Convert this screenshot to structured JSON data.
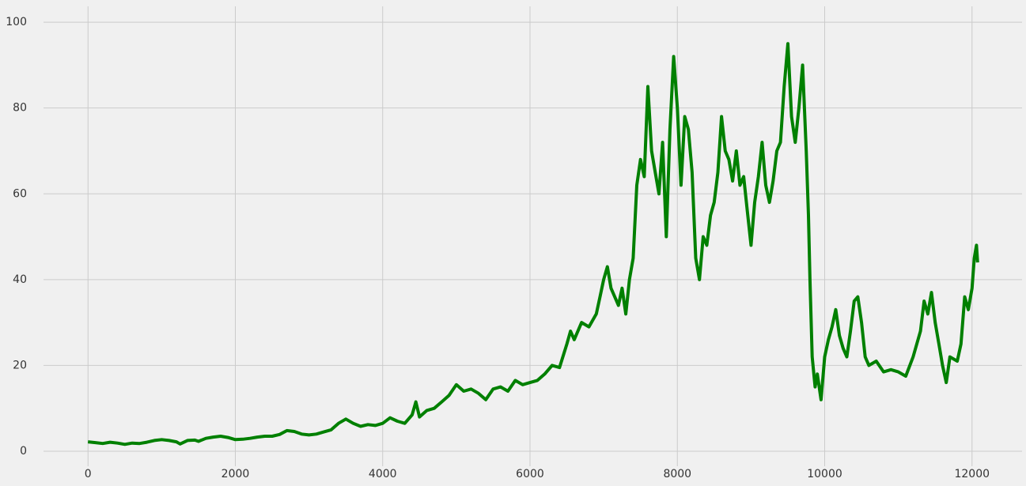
{
  "chart_data": {
    "type": "line",
    "x": [
      0,
      100,
      200,
      300,
      400,
      500,
      600,
      700,
      800,
      900,
      1000,
      1100,
      1200,
      1250,
      1350,
      1450,
      1500,
      1600,
      1700,
      1800,
      1900,
      2000,
      2100,
      2200,
      2300,
      2400,
      2500,
      2600,
      2700,
      2800,
      2900,
      3000,
      3100,
      3200,
      3300,
      3400,
      3500,
      3600,
      3700,
      3800,
      3900,
      4000,
      4100,
      4200,
      4300,
      4400,
      4450,
      4500,
      4600,
      4700,
      4800,
      4900,
      5000,
      5100,
      5200,
      5300,
      5400,
      5500,
      5600,
      5700,
      5800,
      5900,
      6000,
      6100,
      6200,
      6300,
      6400,
      6500,
      6550,
      6600,
      6700,
      6800,
      6900,
      6950,
      7000,
      7050,
      7100,
      7200,
      7250,
      7300,
      7350,
      7400,
      7450,
      7500,
      7550,
      7600,
      7650,
      7700,
      7750,
      7800,
      7850,
      7900,
      7950,
      8000,
      8050,
      8100,
      8150,
      8200,
      8250,
      8300,
      8350,
      8400,
      8450,
      8500,
      8550,
      8600,
      8650,
      8700,
      8750,
      8800,
      8850,
      8900,
      8950,
      9000,
      9050,
      9100,
      9150,
      9200,
      9250,
      9300,
      9350,
      9400,
      9450,
      9500,
      9550,
      9600,
      9650,
      9700,
      9750,
      9780,
      9800,
      9830,
      9870,
      9900,
      9950,
      10000,
      10050,
      10100,
      10150,
      10200,
      10250,
      10300,
      10350,
      10400,
      10450,
      10500,
      10550,
      10600,
      10700,
      10800,
      10900,
      11000,
      11100,
      11200,
      11300,
      11350,
      11400,
      11450,
      11500,
      11550,
      11600,
      11650,
      11700,
      11800,
      11850,
      11900,
      11950,
      12000,
      12030,
      12060,
      12075
    ],
    "values": [
      2.2,
      2,
      1.8,
      2.1,
      1.9,
      1.6,
      1.9,
      1.8,
      2.1,
      2.5,
      2.7,
      2.5,
      2.2,
      1.7,
      2.5,
      2.6,
      2.3,
      3,
      3.3,
      3.5,
      3.2,
      2.7,
      2.8,
      3,
      3.3,
      3.5,
      3.5,
      3.9,
      4.8,
      4.6,
      4,
      3.8,
      4,
      4.5,
      5,
      6.5,
      7.5,
      6.5,
      5.8,
      6.2,
      6,
      6.5,
      7.8,
      7,
      6.5,
      8.5,
      11.5,
      8,
      9.5,
      10,
      11.5,
      13,
      15.5,
      14,
      14.5,
      13.5,
      12,
      14.5,
      15,
      14,
      16.5,
      15.5,
      16,
      16.5,
      18,
      20,
      19.5,
      25,
      28,
      26,
      30,
      29,
      32,
      36,
      40,
      43,
      38,
      34,
      38,
      32,
      40,
      45,
      62,
      68,
      64,
      85,
      70,
      65,
      60,
      72,
      50,
      75,
      92,
      80,
      62,
      78,
      75,
      65,
      45,
      40,
      50,
      48,
      55,
      58,
      65,
      78,
      70,
      68,
      63,
      70,
      62,
      64,
      56,
      48,
      58,
      64,
      72,
      62,
      58,
      63,
      70,
      72,
      85,
      95,
      78,
      72,
      80,
      90,
      70,
      55,
      40,
      22,
      15,
      18,
      12,
      22,
      26,
      29,
      33,
      27,
      24,
      22,
      28,
      35,
      36,
      30,
      22,
      20,
      21,
      18.5,
      19,
      18.5,
      17.5,
      22,
      28,
      35,
      32,
      37,
      30,
      25,
      20,
      16,
      22,
      21,
      25,
      36,
      33,
      38,
      45,
      48,
      44
    ],
    "color": "#008000",
    "xlim": [
      -604,
      12679
    ],
    "ylim": [
      -3.5,
      103.7
    ],
    "xticks": [
      0,
      2000,
      4000,
      6000,
      8000,
      10000,
      12000
    ],
    "yticks": [
      0,
      20,
      40,
      60,
      80,
      100
    ],
    "grid": true
  }
}
